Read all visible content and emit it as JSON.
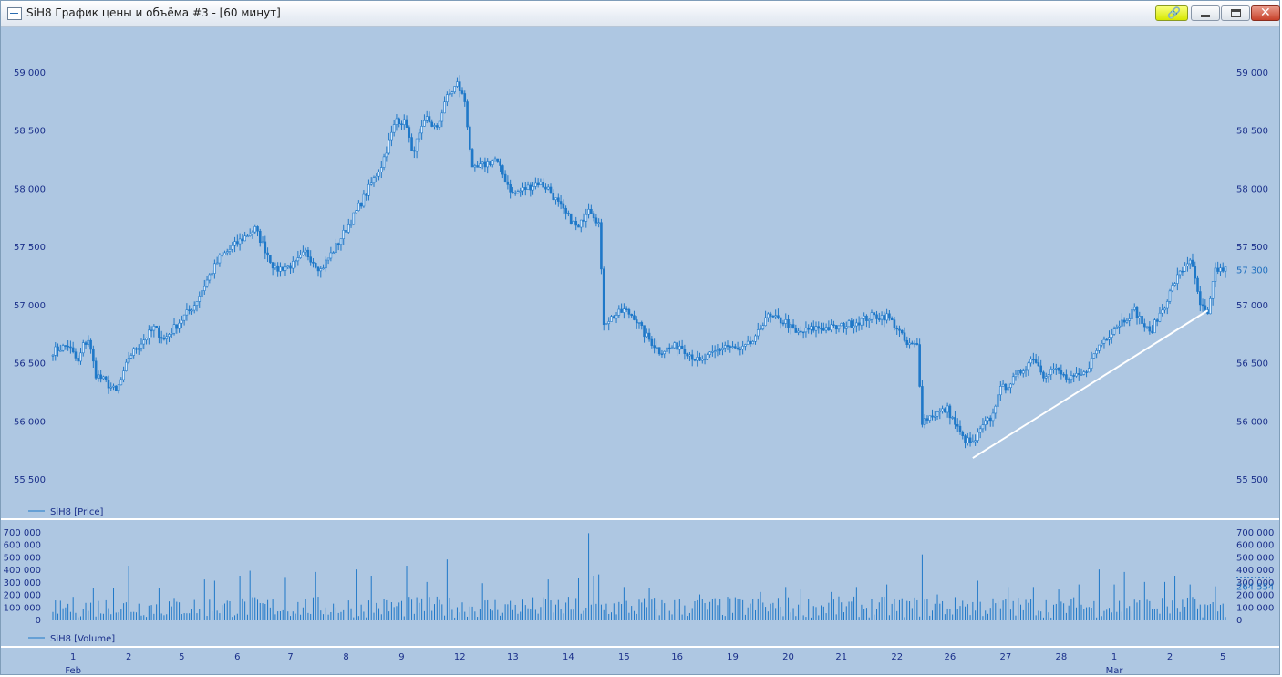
{
  "window": {
    "title": "SiH8 График цены и объёма #3 - [60 минут]",
    "icons": [
      "link-icon",
      "minimize-icon",
      "maximize-icon",
      "close-icon"
    ]
  },
  "colors": {
    "background": "#aec7e2",
    "series": "#1f78c8",
    "axis_text": "#1a2f8a",
    "trendline": "#ffffff",
    "separator": "#ffffff"
  },
  "chart_data": [
    {
      "type": "candlestick",
      "legend": "SiH8 [Price]",
      "y_ticks": [
        "59 000",
        "58 500",
        "58 000",
        "57 500",
        "57 000",
        "56 500",
        "56 000",
        "55 500"
      ],
      "y_tick_values": [
        59000,
        58500,
        58000,
        57500,
        57000,
        56500,
        56000,
        55500
      ],
      "ylim": [
        55300,
        59450
      ],
      "last_price_label": "57 300",
      "last_price": 57300,
      "path": [
        [
          0,
          56600
        ],
        [
          6,
          56650
        ],
        [
          10,
          56500
        ],
        [
          12,
          56650
        ],
        [
          14,
          56700
        ],
        [
          17,
          56400
        ],
        [
          20,
          56350
        ],
        [
          25,
          56250
        ],
        [
          28,
          56400
        ],
        [
          30,
          56550
        ],
        [
          36,
          56700
        ],
        [
          40,
          56800
        ],
        [
          44,
          56700
        ],
        [
          50,
          56850
        ],
        [
          56,
          57000
        ],
        [
          62,
          57250
        ],
        [
          66,
          57400
        ],
        [
          74,
          57550
        ],
        [
          80,
          57650
        ],
        [
          88,
          57300
        ],
        [
          96,
          57350
        ],
        [
          100,
          57450
        ],
        [
          106,
          57300
        ],
        [
          112,
          57500
        ],
        [
          120,
          57800
        ],
        [
          130,
          58200
        ],
        [
          136,
          58600
        ],
        [
          140,
          58550
        ],
        [
          142,
          58300
        ],
        [
          148,
          58600
        ],
        [
          152,
          58500
        ],
        [
          155,
          58750
        ],
        [
          160,
          58900
        ],
        [
          163,
          58750
        ],
        [
          166,
          58150
        ],
        [
          175,
          58250
        ],
        [
          182,
          57950
        ],
        [
          192,
          58050
        ],
        [
          196,
          58000
        ],
        [
          202,
          57800
        ],
        [
          208,
          57650
        ],
        [
          212,
          57850
        ],
        [
          216,
          57700
        ],
        [
          218,
          56850
        ],
        [
          226,
          56950
        ],
        [
          230,
          56900
        ],
        [
          234,
          56750
        ],
        [
          240,
          56600
        ],
        [
          248,
          56650
        ],
        [
          256,
          56500
        ],
        [
          266,
          56650
        ],
        [
          272,
          56600
        ],
        [
          278,
          56700
        ],
        [
          282,
          56900
        ],
        [
          290,
          56850
        ],
        [
          294,
          56750
        ],
        [
          302,
          56800
        ],
        [
          310,
          56800
        ],
        [
          318,
          56850
        ],
        [
          324,
          56900
        ],
        [
          330,
          56900
        ],
        [
          334,
          56800
        ],
        [
          338,
          56650
        ],
        [
          342,
          56650
        ],
        [
          344,
          56000
        ],
        [
          348,
          56050
        ],
        [
          354,
          56100
        ],
        [
          360,
          55850
        ],
        [
          364,
          55800
        ],
        [
          368,
          55950
        ],
        [
          372,
          56050
        ],
        [
          374,
          56250
        ],
        [
          380,
          56350
        ],
        [
          388,
          56550
        ],
        [
          392,
          56400
        ],
        [
          396,
          56450
        ],
        [
          402,
          56350
        ],
        [
          408,
          56400
        ],
        [
          414,
          56650
        ],
        [
          420,
          56800
        ],
        [
          428,
          56950
        ],
        [
          434,
          56750
        ],
        [
          440,
          57000
        ],
        [
          444,
          57200
        ],
        [
          450,
          57400
        ],
        [
          454,
          57000
        ],
        [
          457,
          56900
        ],
        [
          460,
          57300
        ]
      ],
      "trendline": [
        [
          364,
          55680
        ],
        [
          457,
          56950
        ]
      ]
    },
    {
      "type": "bar",
      "legend": "SiH8 [Volume]",
      "y_ticks": [
        "700 000",
        "600 000",
        "500 000",
        "400 000",
        "300 000",
        "200 000",
        "100 000",
        "0"
      ],
      "y_tick_values": [
        700000,
        600000,
        500000,
        400000,
        300000,
        200000,
        100000,
        0
      ],
      "ylim": [
        0,
        740000
      ],
      "last_volume_label": "264 554",
      "last_volume": 264554,
      "spikes": [
        [
          0,
          60000
        ],
        [
          3,
          150000
        ],
        [
          16,
          250000
        ],
        [
          24,
          250000
        ],
        [
          30,
          430000
        ],
        [
          42,
          250000
        ],
        [
          60,
          320000
        ],
        [
          64,
          310000
        ],
        [
          74,
          350000
        ],
        [
          78,
          390000
        ],
        [
          92,
          340000
        ],
        [
          104,
          380000
        ],
        [
          120,
          400000
        ],
        [
          126,
          350000
        ],
        [
          140,
          430000
        ],
        [
          148,
          300000
        ],
        [
          156,
          480000
        ],
        [
          170,
          290000
        ],
        [
          196,
          320000
        ],
        [
          208,
          330000
        ],
        [
          212,
          690000
        ],
        [
          214,
          350000
        ],
        [
          216,
          360000
        ],
        [
          226,
          260000
        ],
        [
          236,
          250000
        ],
        [
          256,
          200000
        ],
        [
          268,
          170000
        ],
        [
          280,
          220000
        ],
        [
          290,
          260000
        ],
        [
          296,
          240000
        ],
        [
          308,
          220000
        ],
        [
          318,
          260000
        ],
        [
          330,
          280000
        ],
        [
          344,
          520000
        ],
        [
          350,
          200000
        ],
        [
          360,
          150000
        ],
        [
          366,
          310000
        ],
        [
          378,
          260000
        ],
        [
          388,
          260000
        ],
        [
          398,
          240000
        ],
        [
          406,
          280000
        ],
        [
          414,
          400000
        ],
        [
          420,
          280000
        ],
        [
          424,
          380000
        ],
        [
          432,
          300000
        ],
        [
          440,
          300000
        ],
        [
          444,
          350000
        ],
        [
          450,
          280000
        ],
        [
          460,
          265000
        ]
      ]
    }
  ],
  "x_axis": {
    "ticks": [
      "1",
      "2",
      "5",
      "6",
      "7",
      "8",
      "9",
      "12",
      "13",
      "14",
      "15",
      "16",
      "19",
      "20",
      "21",
      "22",
      "26",
      "27",
      "28",
      "1",
      "2",
      "5"
    ],
    "tick_positions": [
      8,
      30,
      51,
      73,
      94,
      116,
      138,
      161,
      182,
      204,
      226,
      247,
      269,
      291,
      312,
      334,
      355,
      377,
      399,
      420,
      442,
      463
    ],
    "months": [
      {
        "label": "Feb",
        "at": 8
      },
      {
        "label": "Mar",
        "at": 420
      }
    ]
  }
}
